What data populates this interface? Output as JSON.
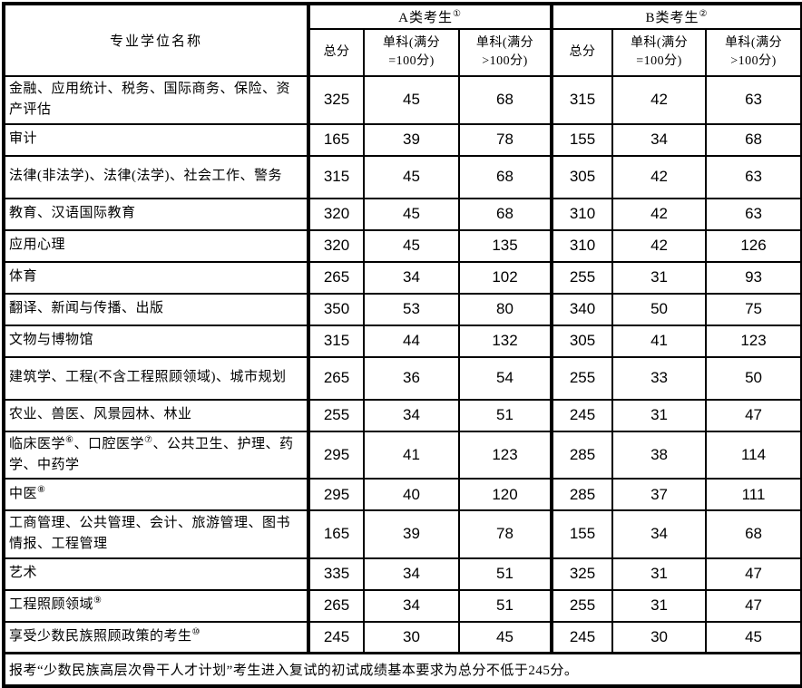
{
  "table": {
    "header": {
      "major_col": "专业学位名称",
      "group_a": "A类考生①",
      "group_b": "B类考生②",
      "sub": [
        "总分",
        "单科(满分\n=100分)",
        "单科(满分\n>100分)"
      ]
    },
    "rows": [
      {
        "name": "金融、应用统计、税务、国际商务、保险、资产评估",
        "values": [
          325,
          45,
          68,
          315,
          42,
          63
        ],
        "two_line": true
      },
      {
        "name": "审计",
        "values": [
          165,
          39,
          78,
          155,
          34,
          68
        ],
        "two_line": false
      },
      {
        "name": "法律(非法学)、法律(法学)、社会工作、警务",
        "values": [
          315,
          45,
          68,
          305,
          42,
          63
        ],
        "two_line": true
      },
      {
        "name": "教育、汉语国际教育",
        "values": [
          320,
          45,
          68,
          310,
          42,
          63
        ],
        "two_line": false
      },
      {
        "name": "应用心理",
        "values": [
          320,
          45,
          135,
          310,
          42,
          126
        ],
        "two_line": false
      },
      {
        "name": "体育",
        "values": [
          265,
          34,
          102,
          255,
          31,
          93
        ],
        "two_line": false
      },
      {
        "name": "翻译、新闻与传播、出版",
        "values": [
          350,
          53,
          80,
          340,
          50,
          75
        ],
        "two_line": false
      },
      {
        "name": "文物与博物馆",
        "values": [
          315,
          44,
          132,
          305,
          41,
          123
        ],
        "two_line": false
      },
      {
        "name": "建筑学、工程(不含工程照顾领域)、城市规划",
        "values": [
          265,
          36,
          54,
          255,
          33,
          50
        ],
        "two_line": true
      },
      {
        "name": "农业、兽医、风景园林、林业",
        "values": [
          255,
          34,
          51,
          245,
          31,
          47
        ],
        "two_line": false
      },
      {
        "name": "临床医学⑥、口腔医学⑦、公共卫生、护理、药学、中药学",
        "values": [
          295,
          41,
          123,
          285,
          38,
          114
        ],
        "two_line": true
      },
      {
        "name": "中医⑧",
        "values": [
          295,
          40,
          120,
          285,
          37,
          111
        ],
        "two_line": false
      },
      {
        "name": "工商管理、公共管理、会计、旅游管理、图书情报、工程管理",
        "values": [
          165,
          39,
          78,
          155,
          34,
          68
        ],
        "two_line": true
      },
      {
        "name": "艺术",
        "values": [
          335,
          34,
          51,
          325,
          31,
          47
        ],
        "two_line": false
      },
      {
        "name": "工程照顾领域⑨",
        "values": [
          265,
          34,
          51,
          255,
          31,
          47
        ],
        "two_line": false
      },
      {
        "name": "享受少数民族照顾政策的考生⑩",
        "values": [
          245,
          30,
          45,
          245,
          30,
          45
        ],
        "two_line": false
      }
    ],
    "footnote": "报考“少数民族高层次骨干人才计划”考生进入复试的初试成绩基本要求为总分不低于245分。"
  }
}
